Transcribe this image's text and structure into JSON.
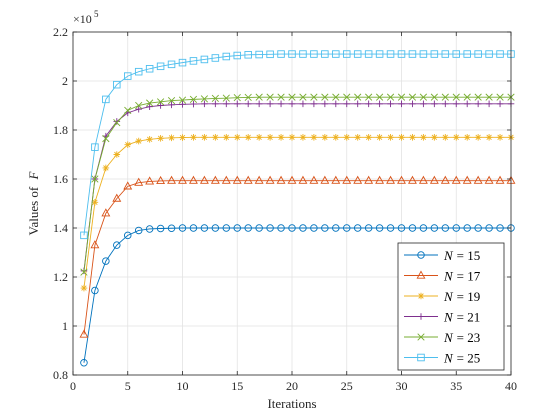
{
  "chart_data": {
    "type": "line",
    "title": "",
    "xlabel": "Iterations",
    "ylabel": "Values of",
    "ylabel_symbol": "F",
    "y_exponent_base": "×10",
    "y_exponent_power": "5",
    "xlim": [
      0,
      40
    ],
    "ylim": [
      0.8,
      2.2
    ],
    "x_ticks": [
      0,
      5,
      10,
      15,
      20,
      25,
      30,
      35,
      40
    ],
    "x_tick_labels": [
      "0",
      "5",
      "10",
      "15",
      "20",
      "25",
      "30",
      "35",
      "40"
    ],
    "y_ticks": [
      0.8,
      1.0,
      1.2,
      1.4,
      1.6,
      1.8,
      2.0,
      2.2
    ],
    "y_tick_labels": [
      "0.8",
      "1",
      "1.2",
      "1.4",
      "1.6",
      "1.8",
      "2",
      "2.2"
    ],
    "grid": true,
    "legend_position": "bottom-right",
    "series": [
      {
        "name_symbol": "N",
        "name_value": "= 15",
        "color": "#0072BD",
        "marker": "circle",
        "x": [
          1,
          2,
          3,
          4,
          5,
          6,
          7,
          8,
          9,
          10,
          11,
          12,
          13,
          14,
          15,
          16,
          17,
          18,
          19,
          20,
          21,
          22,
          23,
          24,
          25,
          26,
          27,
          28,
          29,
          30,
          31,
          32,
          33,
          34,
          35,
          36,
          37,
          38,
          39,
          40
        ],
        "y": [
          0.85,
          1.145,
          1.265,
          1.33,
          1.37,
          1.39,
          1.396,
          1.398,
          1.399,
          1.4,
          1.4,
          1.4,
          1.4,
          1.4,
          1.4,
          1.4,
          1.4,
          1.4,
          1.4,
          1.4,
          1.4,
          1.4,
          1.4,
          1.4,
          1.4,
          1.4,
          1.4,
          1.4,
          1.4,
          1.4,
          1.4,
          1.4,
          1.4,
          1.4,
          1.4,
          1.4,
          1.4,
          1.4,
          1.4,
          1.4
        ]
      },
      {
        "name_symbol": "N",
        "name_value": "= 17",
        "color": "#D95319",
        "marker": "triangle",
        "x": [
          1,
          2,
          3,
          4,
          5,
          6,
          7,
          8,
          9,
          10,
          11,
          12,
          13,
          14,
          15,
          16,
          17,
          18,
          19,
          20,
          21,
          22,
          23,
          24,
          25,
          26,
          27,
          28,
          29,
          30,
          31,
          32,
          33,
          34,
          35,
          36,
          37,
          38,
          39,
          40
        ],
        "y": [
          0.965,
          1.33,
          1.46,
          1.52,
          1.57,
          1.585,
          1.59,
          1.592,
          1.593,
          1.593,
          1.593,
          1.593,
          1.593,
          1.593,
          1.593,
          1.593,
          1.593,
          1.593,
          1.593,
          1.593,
          1.593,
          1.593,
          1.593,
          1.593,
          1.593,
          1.593,
          1.593,
          1.593,
          1.593,
          1.593,
          1.593,
          1.593,
          1.593,
          1.593,
          1.593,
          1.593,
          1.593,
          1.593,
          1.593,
          1.593
        ]
      },
      {
        "name_symbol": "N",
        "name_value": "= 19",
        "color": "#EDB120",
        "marker": "asterisk",
        "x": [
          1,
          2,
          3,
          4,
          5,
          6,
          7,
          8,
          9,
          10,
          11,
          12,
          13,
          14,
          15,
          16,
          17,
          18,
          19,
          20,
          21,
          22,
          23,
          24,
          25,
          26,
          27,
          28,
          29,
          30,
          31,
          32,
          33,
          34,
          35,
          36,
          37,
          38,
          39,
          40
        ],
        "y": [
          1.155,
          1.505,
          1.645,
          1.7,
          1.74,
          1.755,
          1.762,
          1.766,
          1.768,
          1.769,
          1.77,
          1.77,
          1.77,
          1.77,
          1.77,
          1.77,
          1.77,
          1.77,
          1.77,
          1.77,
          1.77,
          1.77,
          1.77,
          1.77,
          1.77,
          1.77,
          1.77,
          1.77,
          1.77,
          1.77,
          1.77,
          1.77,
          1.77,
          1.77,
          1.77,
          1.77,
          1.77,
          1.77,
          1.77,
          1.77
        ]
      },
      {
        "name_symbol": "N",
        "name_value": "= 21",
        "color": "#7E2F8E",
        "marker": "plus",
        "x": [
          1,
          2,
          3,
          4,
          5,
          6,
          7,
          8,
          9,
          10,
          11,
          12,
          13,
          14,
          15,
          16,
          17,
          18,
          19,
          20,
          21,
          22,
          23,
          24,
          25,
          26,
          27,
          28,
          29,
          30,
          31,
          32,
          33,
          34,
          35,
          36,
          37,
          38,
          39,
          40
        ],
        "y": [
          1.225,
          1.6,
          1.775,
          1.835,
          1.87,
          1.885,
          1.895,
          1.9,
          1.903,
          1.905,
          1.906,
          1.907,
          1.907,
          1.907,
          1.907,
          1.907,
          1.907,
          1.907,
          1.907,
          1.907,
          1.907,
          1.907,
          1.907,
          1.907,
          1.907,
          1.907,
          1.907,
          1.907,
          1.907,
          1.907,
          1.907,
          1.907,
          1.907,
          1.907,
          1.907,
          1.907,
          1.907,
          1.907,
          1.907,
          1.907
        ]
      },
      {
        "name_symbol": "N",
        "name_value": "= 23",
        "color": "#77AC30",
        "marker": "x",
        "x": [
          1,
          2,
          3,
          4,
          5,
          6,
          7,
          8,
          9,
          10,
          11,
          12,
          13,
          14,
          15,
          16,
          17,
          18,
          19,
          20,
          21,
          22,
          23,
          24,
          25,
          26,
          27,
          28,
          29,
          30,
          31,
          32,
          33,
          34,
          35,
          36,
          37,
          38,
          39,
          40
        ],
        "y": [
          1.22,
          1.6,
          1.765,
          1.83,
          1.88,
          1.9,
          1.91,
          1.915,
          1.92,
          1.922,
          1.925,
          1.927,
          1.929,
          1.93,
          1.932,
          1.933,
          1.934,
          1.934,
          1.934,
          1.934,
          1.934,
          1.934,
          1.934,
          1.934,
          1.934,
          1.934,
          1.934,
          1.934,
          1.934,
          1.934,
          1.934,
          1.934,
          1.934,
          1.934,
          1.934,
          1.934,
          1.934,
          1.934,
          1.934,
          1.934
        ]
      },
      {
        "name_symbol": "N",
        "name_value": "= 25",
        "color": "#4DBEEE",
        "marker": "square",
        "x": [
          1,
          2,
          3,
          4,
          5,
          6,
          7,
          8,
          9,
          10,
          11,
          12,
          13,
          14,
          15,
          16,
          17,
          18,
          19,
          20,
          21,
          22,
          23,
          24,
          25,
          26,
          27,
          28,
          29,
          30,
          31,
          32,
          33,
          34,
          35,
          36,
          37,
          38,
          39,
          40
        ],
        "y": [
          1.37,
          1.73,
          1.925,
          1.985,
          2.02,
          2.038,
          2.05,
          2.06,
          2.068,
          2.075,
          2.082,
          2.088,
          2.094,
          2.1,
          2.104,
          2.107,
          2.108,
          2.109,
          2.11,
          2.11,
          2.11,
          2.11,
          2.11,
          2.11,
          2.11,
          2.11,
          2.11,
          2.11,
          2.11,
          2.11,
          2.11,
          2.11,
          2.11,
          2.11,
          2.11,
          2.11,
          2.11,
          2.11,
          2.11,
          2.11
        ]
      }
    ]
  }
}
